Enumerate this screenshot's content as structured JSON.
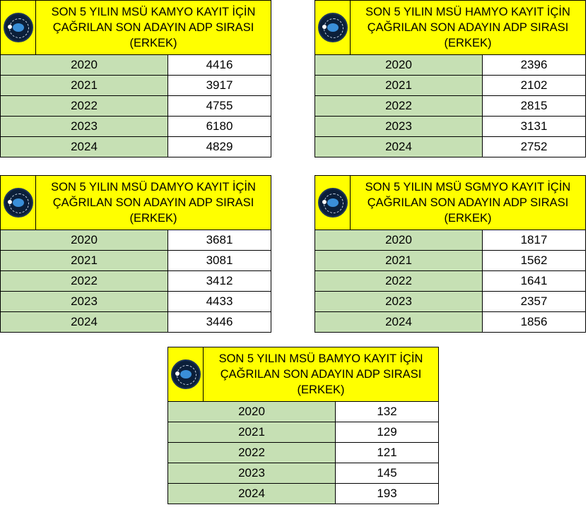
{
  "tables": [
    {
      "title_lines": [
        "SON 5 YILIN MSÜ KAMYO KAYIT İÇİN",
        "ÇAĞRILAN SON ADAYIN ADP SIRASI",
        "(ERKEK)"
      ],
      "rows": [
        {
          "year": "2020",
          "value": "4416"
        },
        {
          "year": "2021",
          "value": "3917"
        },
        {
          "year": "2022",
          "value": "4755"
        },
        {
          "year": "2023",
          "value": "6180"
        },
        {
          "year": "2024",
          "value": "4829"
        }
      ]
    },
    {
      "title_lines": [
        "SON 5 YILIN MSÜ HAMYO KAYIT İÇİN",
        "ÇAĞRILAN SON ADAYIN ADP SIRASI",
        "(ERKEK)"
      ],
      "rows": [
        {
          "year": "2020",
          "value": "2396"
        },
        {
          "year": "2021",
          "value": "2102"
        },
        {
          "year": "2022",
          "value": "2815"
        },
        {
          "year": "2023",
          "value": "3131"
        },
        {
          "year": "2024",
          "value": "2752"
        }
      ]
    },
    {
      "title_lines": [
        "SON 5 YILIN MSÜ DAMYO KAYIT İÇİN",
        "ÇAĞRILAN SON ADAYIN ADP SIRASI",
        "(ERKEK)"
      ],
      "rows": [
        {
          "year": "2020",
          "value": "3681"
        },
        {
          "year": "2021",
          "value": "3081"
        },
        {
          "year": "2022",
          "value": "3412"
        },
        {
          "year": "2023",
          "value": "4433"
        },
        {
          "year": "2024",
          "value": "3446"
        }
      ]
    },
    {
      "title_lines": [
        "SON 5 YILIN MSÜ SGMYO KAYIT İÇİN",
        "ÇAĞRILAN SON ADAYIN ADP SIRASI",
        "(ERKEK)"
      ],
      "rows": [
        {
          "year": "2020",
          "value": "1817"
        },
        {
          "year": "2021",
          "value": "1562"
        },
        {
          "year": "2022",
          "value": "1641"
        },
        {
          "year": "2023",
          "value": "2357"
        },
        {
          "year": "2024",
          "value": "1856"
        }
      ]
    },
    {
      "title_lines": [
        "SON 5 YILIN MSÜ BAMYO KAYIT İÇİN",
        "ÇAĞRILAN SON ADAYIN ADP SIRASI",
        "(ERKEK)"
      ],
      "rows": [
        {
          "year": "2020",
          "value": "132"
        },
        {
          "year": "2021",
          "value": "129"
        },
        {
          "year": "2022",
          "value": "121"
        },
        {
          "year": "2023",
          "value": "145"
        },
        {
          "year": "2024",
          "value": "193"
        }
      ]
    }
  ],
  "colors": {
    "header_bg": "#ffff00",
    "year_bg": "#c6e0b4",
    "value_bg": "#ffffff"
  },
  "logo_icon": "emblem-icon"
}
